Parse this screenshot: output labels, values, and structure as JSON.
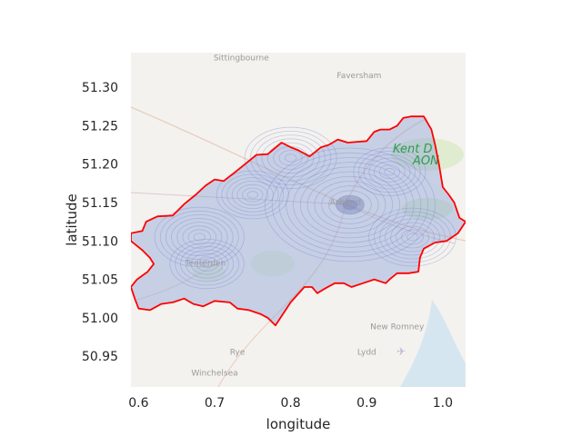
{
  "chart_data": {
    "type": "map",
    "xlabel": "longitude",
    "ylabel": "latitude",
    "xlim": [
      0.59,
      1.03
    ],
    "ylim": [
      50.91,
      51.345
    ],
    "xticks": [
      0.6,
      0.7,
      0.8,
      0.9,
      1.0
    ],
    "xtick_labels": [
      "0.6",
      "0.7",
      "0.8",
      "0.9",
      "1.0"
    ],
    "yticks": [
      50.95,
      51.0,
      51.05,
      51.1,
      51.15,
      51.2,
      51.25,
      51.3
    ],
    "ytick_labels": [
      "50.95",
      "51.00",
      "51.05",
      "51.10",
      "51.15",
      "51.20",
      "51.25",
      "51.30"
    ],
    "grid": false,
    "basemap_places": [
      {
        "name": "Sittingbourne",
        "lon": 0.735,
        "lat": 51.335
      },
      {
        "name": "Faversham",
        "lon": 0.89,
        "lat": 51.312
      },
      {
        "name": "Ashford",
        "lon": 0.872,
        "lat": 51.147
      },
      {
        "name": "Tenterden",
        "lon": 0.688,
        "lat": 51.068
      },
      {
        "name": "New Romney",
        "lon": 0.94,
        "lat": 50.985
      },
      {
        "name": "Rye",
        "lon": 0.73,
        "lat": 50.952
      },
      {
        "name": "Lydd",
        "lon": 0.9,
        "lat": 50.952
      },
      {
        "name": "Winchelsea",
        "lon": 0.7,
        "lat": 50.925
      }
    ],
    "aonb_label": {
      "lines": [
        "Kent D",
        "AON"
      ],
      "color": "#2e9b47"
    },
    "boundary_color": "#ff0000",
    "boundary": [
      [
        0.59,
        51.11
      ],
      [
        0.605,
        51.113
      ],
      [
        0.61,
        51.125
      ],
      [
        0.625,
        51.132
      ],
      [
        0.645,
        51.133
      ],
      [
        0.66,
        51.148
      ],
      [
        0.675,
        51.16
      ],
      [
        0.688,
        51.172
      ],
      [
        0.7,
        51.18
      ],
      [
        0.712,
        51.178
      ],
      [
        0.725,
        51.188
      ],
      [
        0.74,
        51.2
      ],
      [
        0.755,
        51.212
      ],
      [
        0.77,
        51.213
      ],
      [
        0.788,
        51.228
      ],
      [
        0.8,
        51.222
      ],
      [
        0.81,
        51.218
      ],
      [
        0.825,
        51.21
      ],
      [
        0.84,
        51.222
      ],
      [
        0.85,
        51.225
      ],
      [
        0.862,
        51.232
      ],
      [
        0.875,
        51.228
      ],
      [
        0.9,
        51.23
      ],
      [
        0.91,
        51.242
      ],
      [
        0.918,
        51.245
      ],
      [
        0.93,
        51.245
      ],
      [
        0.94,
        51.25
      ],
      [
        0.948,
        51.26
      ],
      [
        0.958,
        51.262
      ],
      [
        0.975,
        51.262
      ],
      [
        0.985,
        51.245
      ],
      [
        0.99,
        51.225
      ],
      [
        0.995,
        51.2
      ],
      [
        1.0,
        51.17
      ],
      [
        1.008,
        51.16
      ],
      [
        1.015,
        51.15
      ],
      [
        1.022,
        51.13
      ],
      [
        1.03,
        51.125
      ],
      [
        1.02,
        51.11
      ],
      [
        1.005,
        51.1
      ],
      [
        0.99,
        51.098
      ],
      [
        0.975,
        51.09
      ],
      [
        0.97,
        51.078
      ],
      [
        0.968,
        51.06
      ],
      [
        0.955,
        51.058
      ],
      [
        0.94,
        51.058
      ],
      [
        0.93,
        51.05
      ],
      [
        0.925,
        51.045
      ],
      [
        0.91,
        51.05
      ],
      [
        0.895,
        51.045
      ],
      [
        0.88,
        51.04
      ],
      [
        0.87,
        51.045
      ],
      [
        0.858,
        51.045
      ],
      [
        0.845,
        51.038
      ],
      [
        0.835,
        51.032
      ],
      [
        0.828,
        51.04
      ],
      [
        0.818,
        51.04
      ],
      [
        0.8,
        51.02
      ],
      [
        0.78,
        50.99
      ],
      [
        0.77,
        51.0
      ],
      [
        0.76,
        51.005
      ],
      [
        0.745,
        51.01
      ],
      [
        0.73,
        51.012
      ],
      [
        0.72,
        51.02
      ],
      [
        0.7,
        51.022
      ],
      [
        0.685,
        51.015
      ],
      [
        0.672,
        51.018
      ],
      [
        0.66,
        51.025
      ],
      [
        0.645,
        51.02
      ],
      [
        0.63,
        51.018
      ],
      [
        0.615,
        51.01
      ],
      [
        0.6,
        51.012
      ],
      [
        0.595,
        51.025
      ],
      [
        0.59,
        51.04
      ],
      [
        0.598,
        51.05
      ],
      [
        0.612,
        51.06
      ],
      [
        0.62,
        51.07
      ],
      [
        0.615,
        51.078
      ],
      [
        0.605,
        51.088
      ],
      [
        0.59,
        51.1
      ]
    ],
    "density_centers": [
      {
        "lon": 0.878,
        "lat": 51.147,
        "weight": 1.0
      },
      {
        "lon": 0.8,
        "lat": 51.208,
        "weight": 0.55
      },
      {
        "lon": 0.68,
        "lat": 51.105,
        "weight": 0.5
      },
      {
        "lon": 0.96,
        "lat": 51.105,
        "weight": 0.45
      },
      {
        "lon": 0.69,
        "lat": 51.07,
        "weight": 0.4
      },
      {
        "lon": 0.75,
        "lat": 51.16,
        "weight": 0.35
      },
      {
        "lon": 0.93,
        "lat": 51.19,
        "weight": 0.35
      }
    ]
  }
}
